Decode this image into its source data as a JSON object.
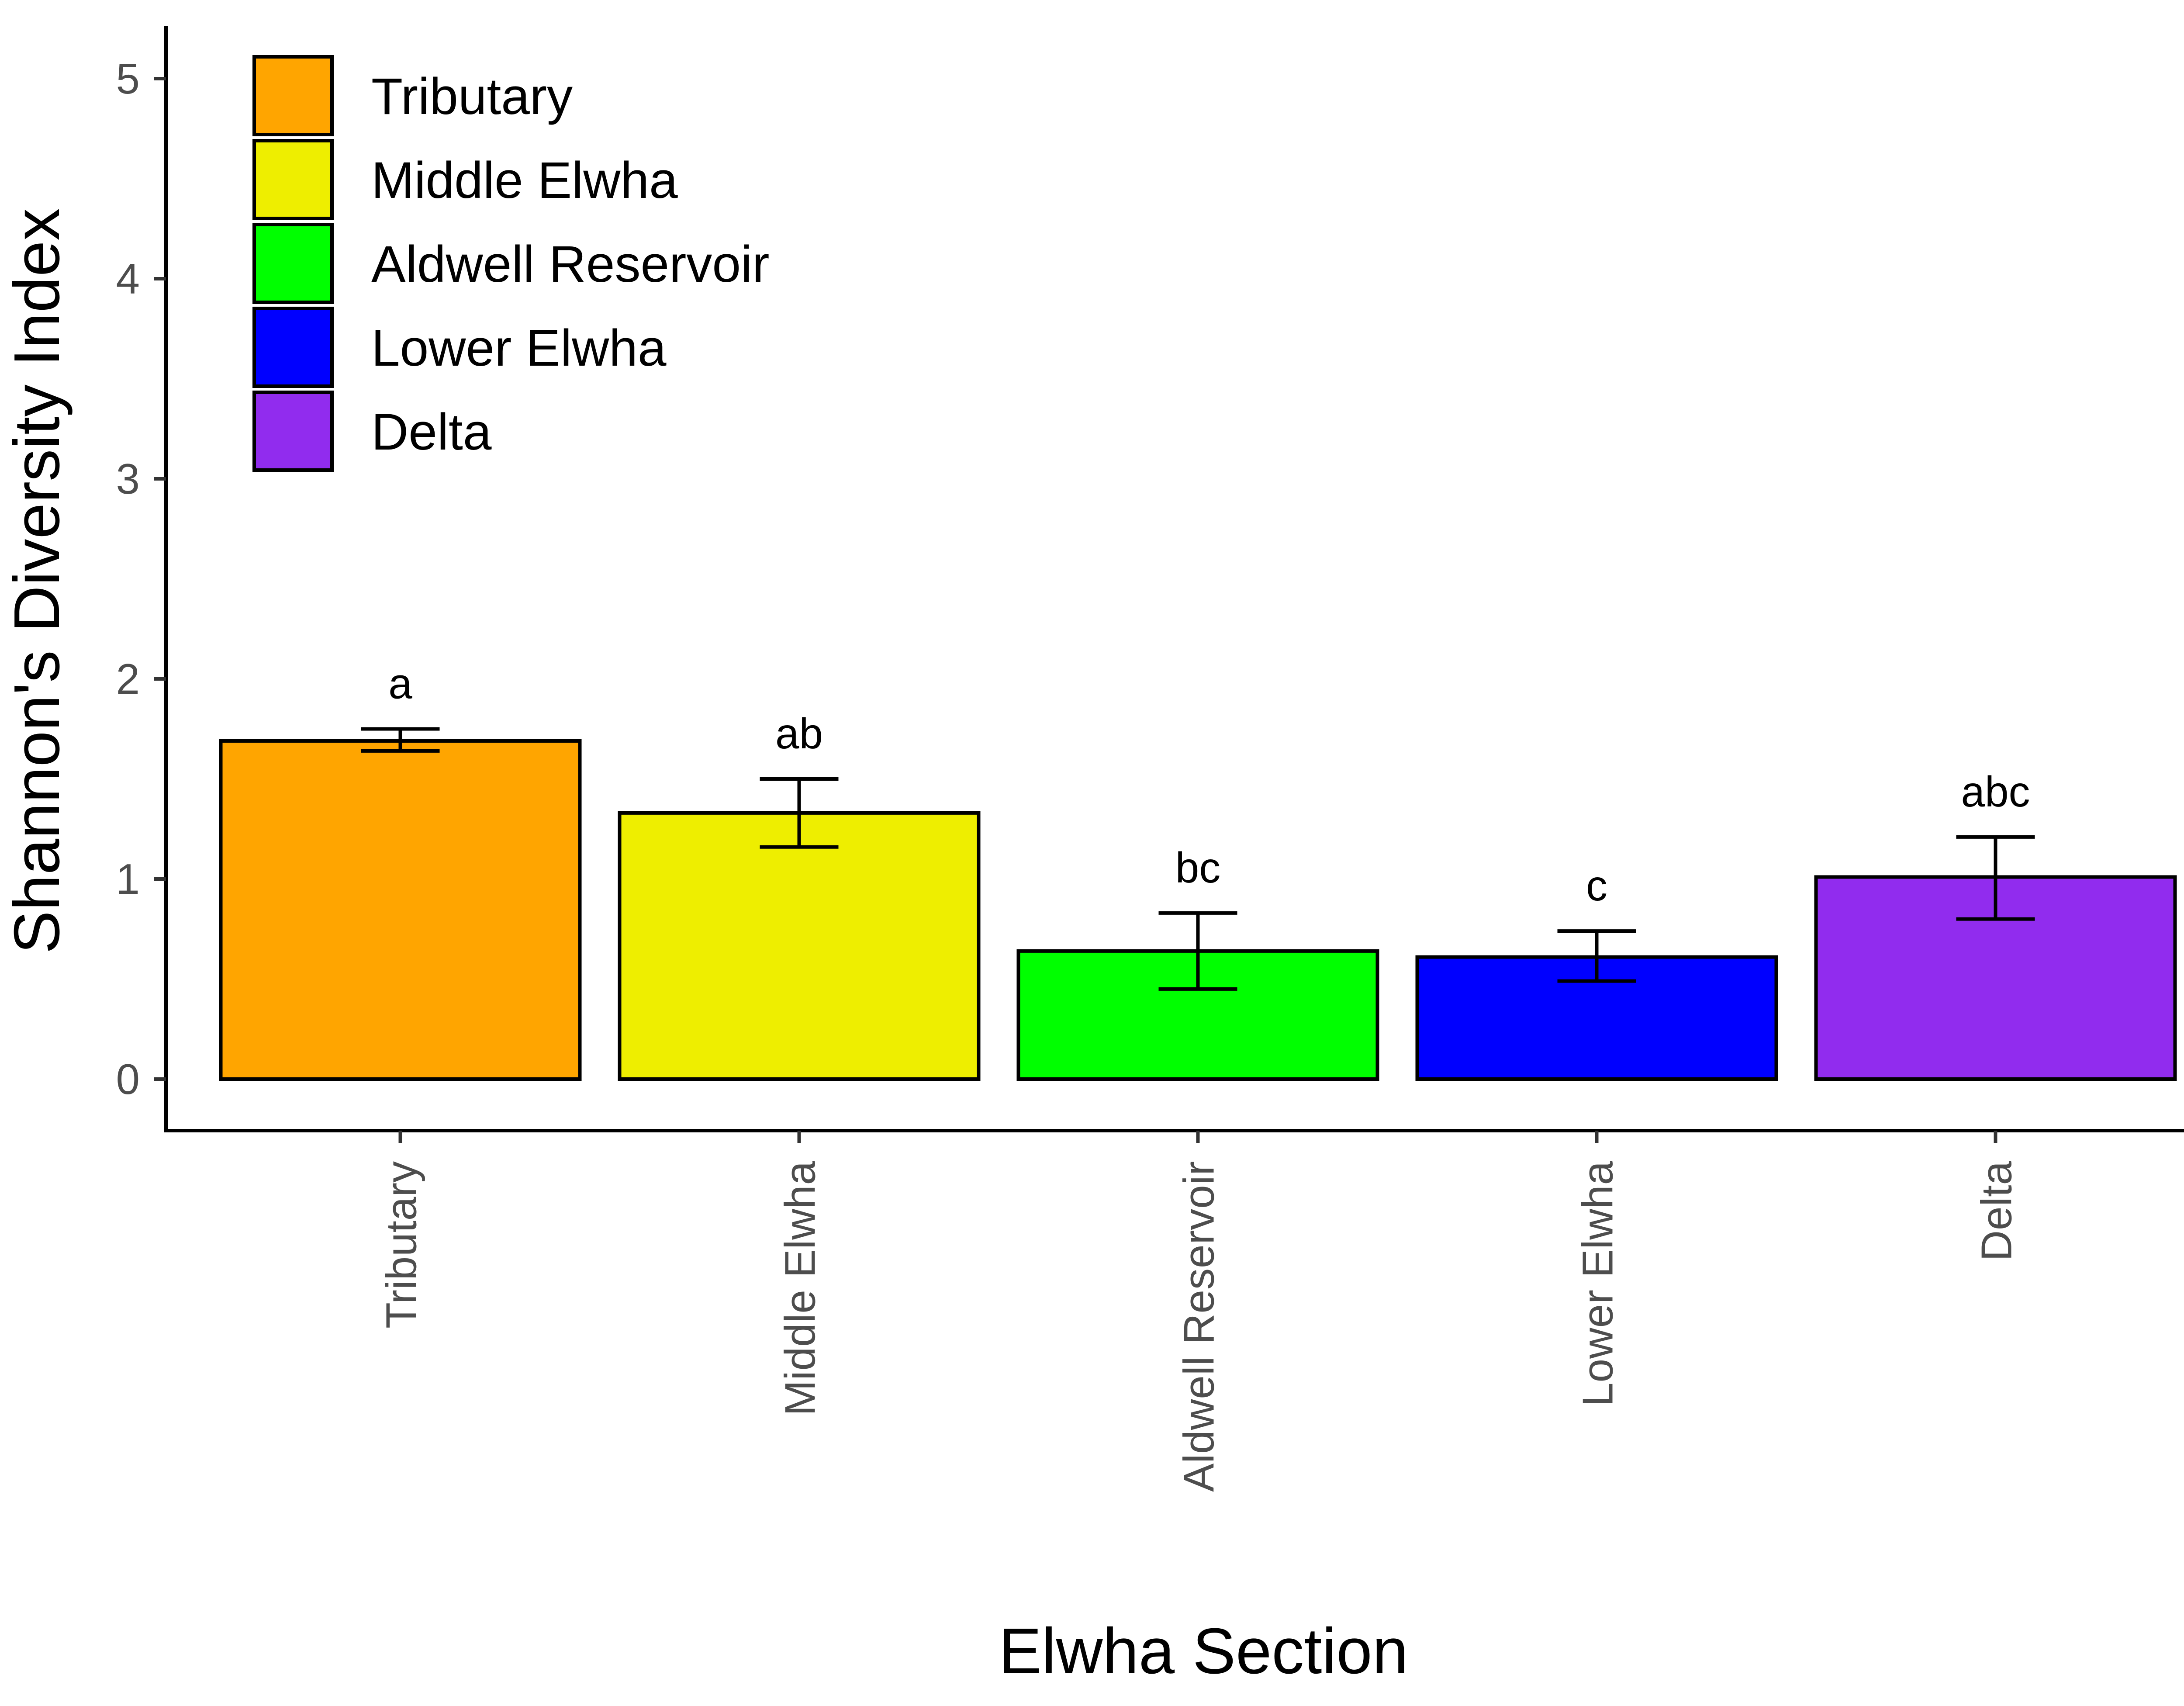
{
  "chart_data": {
    "type": "bar",
    "xlabel": "Elwha Section",
    "ylabel": "Shannon's Diversity Index",
    "ylim": [
      0,
      5
    ],
    "yticks": [
      "0",
      "1",
      "2",
      "3",
      "4",
      "5"
    ],
    "grid": false,
    "legend_position": "top-left",
    "categories": [
      "Tributary",
      "Middle Elwha",
      "Aldwell Reservoir",
      "Lower Elwha",
      "Delta"
    ],
    "values": [
      1.69,
      1.33,
      0.64,
      0.61,
      1.01
    ],
    "error_low": [
      1.64,
      1.16,
      0.45,
      0.49,
      0.8
    ],
    "error_high": [
      1.75,
      1.5,
      0.83,
      0.74,
      1.21
    ],
    "significance_labels": [
      "a",
      "ab",
      "bc",
      "c",
      "abc"
    ],
    "colors": [
      "#FFA500",
      "#EEEE00",
      "#00FF00",
      "#0000FF",
      "#912CEE"
    ],
    "legend": [
      "Tributary",
      "Middle Elwha",
      "Aldwell Reservoir",
      "Lower Elwha",
      "Delta"
    ]
  }
}
